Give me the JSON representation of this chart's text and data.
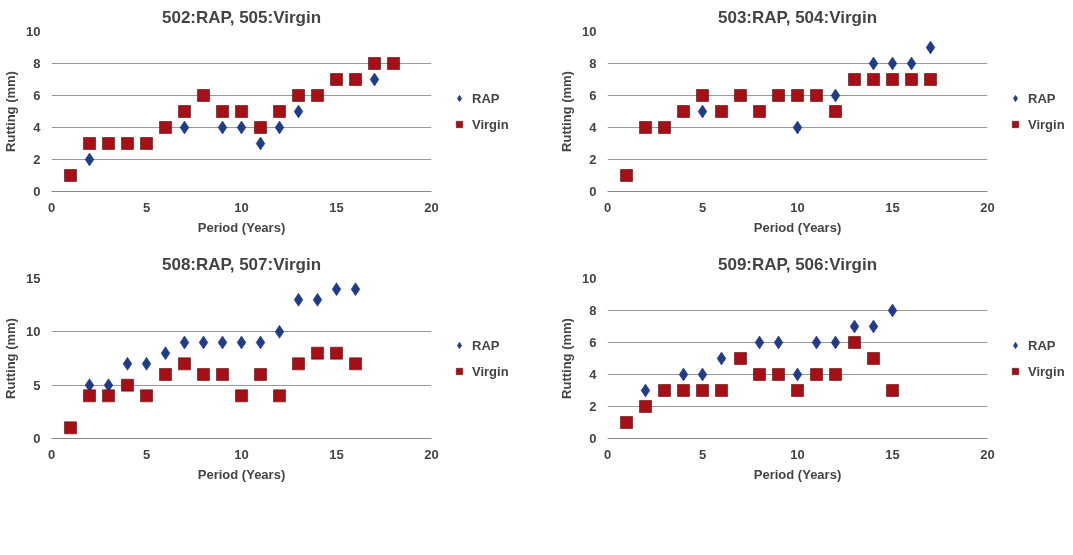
{
  "chart_data": [
    {
      "type": "scatter",
      "title": "502:RAP, 505:Virgin",
      "xlabel": "Period (Years)",
      "ylabel": "Rutting (mm)",
      "xlim": [
        0,
        20
      ],
      "xticks": [
        0,
        5,
        10,
        15,
        20
      ],
      "ylim": [
        0,
        10
      ],
      "yticks": [
        0,
        2,
        4,
        6,
        8,
        10
      ],
      "grid": "y",
      "legend": "right",
      "x": [
        1,
        2,
        3,
        4,
        5,
        6,
        7,
        8,
        9,
        10,
        11,
        12,
        13,
        14,
        15,
        16,
        17,
        18
      ],
      "series": [
        {
          "name": "RAP",
          "color": "#1f3c88",
          "marker": "diamond",
          "values": [
            null,
            2,
            null,
            null,
            null,
            null,
            4,
            null,
            4,
            4,
            3,
            4,
            5,
            null,
            null,
            null,
            7,
            null
          ]
        },
        {
          "name": "Virgin",
          "color": "#a50f15",
          "marker": "square",
          "values": [
            1,
            3,
            3,
            3,
            3,
            4,
            5,
            6,
            5,
            5,
            4,
            5,
            6,
            6,
            7,
            7,
            8,
            8
          ]
        }
      ]
    },
    {
      "type": "scatter",
      "title": "503:RAP, 504:Virgin",
      "xlabel": "Period (Years)",
      "ylabel": "Rutting (mm)",
      "xlim": [
        0,
        20
      ],
      "xticks": [
        0,
        5,
        10,
        15,
        20
      ],
      "ylim": [
        0,
        10
      ],
      "yticks": [
        0,
        2,
        4,
        6,
        8,
        10
      ],
      "grid": "y",
      "legend": "right",
      "x": [
        1,
        2,
        3,
        4,
        5,
        6,
        7,
        8,
        9,
        10,
        11,
        12,
        13,
        14,
        15,
        16,
        17
      ],
      "series": [
        {
          "name": "RAP",
          "color": "#1f3c88",
          "marker": "diamond",
          "values": [
            null,
            null,
            null,
            null,
            5,
            null,
            null,
            null,
            null,
            4,
            null,
            6,
            null,
            8,
            8,
            8,
            9
          ]
        },
        {
          "name": "Virgin",
          "color": "#a50f15",
          "marker": "square",
          "values": [
            1,
            4,
            4,
            5,
            6,
            5,
            6,
            5,
            6,
            6,
            6,
            5,
            7,
            7,
            7,
            7,
            7
          ]
        }
      ]
    },
    {
      "type": "scatter",
      "title": "508:RAP, 507:Virgin",
      "xlabel": "Period (Years)",
      "ylabel": "Rutting (mm)",
      "xlim": [
        0,
        20
      ],
      "xticks": [
        0,
        5,
        10,
        15,
        20
      ],
      "ylim": [
        0,
        15
      ],
      "yticks": [
        0,
        5,
        10,
        15
      ],
      "grid": "y",
      "legend": "right",
      "x": [
        1,
        2,
        3,
        4,
        5,
        6,
        7,
        8,
        9,
        10,
        11,
        12,
        13,
        14,
        15,
        16
      ],
      "series": [
        {
          "name": "RAP",
          "color": "#1f3c88",
          "marker": "diamond",
          "values": [
            null,
            5,
            5,
            7,
            7,
            8,
            9,
            9,
            9,
            9,
            9,
            10,
            13,
            13,
            14,
            14
          ]
        },
        {
          "name": "Virgin",
          "color": "#a50f15",
          "marker": "square",
          "values": [
            1,
            4,
            4,
            5,
            4,
            6,
            7,
            6,
            6,
            4,
            6,
            4,
            7,
            8,
            8,
            7
          ]
        }
      ]
    },
    {
      "type": "scatter",
      "title": "509:RAP, 506:Virgin",
      "xlabel": "Period (Years)",
      "ylabel": "Rutting (mm)",
      "xlim": [
        0,
        20
      ],
      "xticks": [
        0,
        5,
        10,
        15,
        20
      ],
      "ylim": [
        0,
        10
      ],
      "yticks": [
        0,
        2,
        4,
        6,
        8,
        10
      ],
      "grid": "y",
      "legend": "right",
      "x": [
        1,
        2,
        3,
        4,
        5,
        6,
        7,
        8,
        9,
        10,
        11,
        12,
        13,
        14,
        15
      ],
      "series": [
        {
          "name": "RAP",
          "color": "#1f3c88",
          "marker": "diamond",
          "values": [
            null,
            3,
            null,
            4,
            4,
            5,
            null,
            6,
            6,
            4,
            6,
            6,
            7,
            7,
            8
          ]
        },
        {
          "name": "Virgin",
          "color": "#a50f15",
          "marker": "square",
          "values": [
            1,
            2,
            3,
            3,
            3,
            3,
            5,
            4,
            4,
            3,
            4,
            4,
            6,
            5,
            3
          ]
        }
      ]
    }
  ]
}
